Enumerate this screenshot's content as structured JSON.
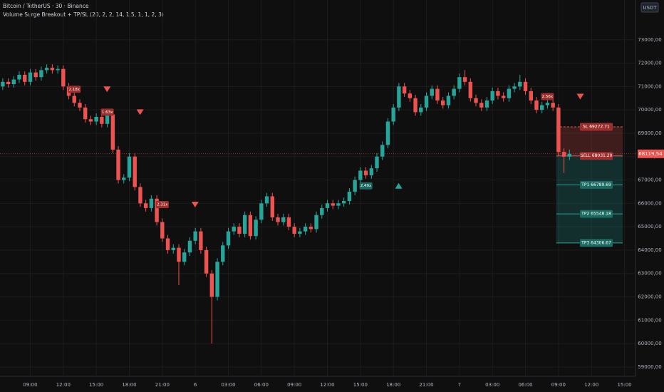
{
  "chart_data": {
    "type": "candlestick",
    "title": "Bitcoin / TetherUS · 30 · Binance",
    "subtitle": "Volume Surge Breakout + TP/SL (20, 2, 2, 14, 1.5, 1, 1, 2, 3)",
    "currency": "USDT",
    "up_color": "#26a69a",
    "down_color": "#ef5350",
    "grid": true,
    "xlim": [
      -0.5,
      115
    ],
    "ylim": [
      58600,
      74700
    ],
    "yticks": [
      {
        "value": 59000,
        "label": "59000,00"
      },
      {
        "value": 60000,
        "label": "60000,00"
      },
      {
        "value": 61000,
        "label": "61000,00"
      },
      {
        "value": 62000,
        "label": "62000,00"
      },
      {
        "value": 63000,
        "label": "63000,00"
      },
      {
        "value": 64000,
        "label": "64000,00"
      },
      {
        "value": 65000,
        "label": "65000,00"
      },
      {
        "value": 66000,
        "label": "66000,00"
      },
      {
        "value": 67000,
        "label": "67000,00"
      },
      {
        "value": 68000,
        "label": "68000,00"
      },
      {
        "value": 69000,
        "label": "69000,00"
      },
      {
        "value": 70000,
        "label": "70000,00"
      },
      {
        "value": 71000,
        "label": "71000,00"
      },
      {
        "value": 72000,
        "label": "72000,00"
      },
      {
        "value": 73000,
        "label": "73000,00"
      }
    ],
    "xticks": [
      {
        "value": 5,
        "label": "09:00"
      },
      {
        "value": 11,
        "label": "12:00"
      },
      {
        "value": 17,
        "label": "15:00"
      },
      {
        "value": 23,
        "label": "18:00"
      },
      {
        "value": 29,
        "label": "21:00"
      },
      {
        "value": 35,
        "label": "6"
      },
      {
        "value": 41,
        "label": "03:00"
      },
      {
        "value": 47,
        "label": "06:00"
      },
      {
        "value": 53,
        "label": "09:00"
      },
      {
        "value": 59,
        "label": "12:00"
      },
      {
        "value": 65,
        "label": "15:00"
      },
      {
        "value": 71,
        "label": "18:00"
      },
      {
        "value": 77,
        "label": "21:00"
      },
      {
        "value": 83,
        "label": "7"
      },
      {
        "value": 89,
        "label": "03:00"
      },
      {
        "value": 95,
        "label": "06:00"
      },
      {
        "value": 101,
        "label": "09:00"
      },
      {
        "value": 107,
        "label": "12:00"
      },
      {
        "value": 113,
        "label": "15:00"
      }
    ],
    "open": [
      71000,
      71200,
      71100,
      71300,
      71500,
      71200,
      71600,
      71400,
      71700,
      71800,
      71700,
      71750,
      71000,
      70600,
      70300,
      70100,
      69600,
      69500,
      69700,
      69400,
      69800,
      68300,
      67000,
      67100,
      68000,
      66700,
      66000,
      65800,
      66200,
      65200,
      64500,
      64000,
      64100,
      63500,
      63900,
      64400,
      64800,
      64000,
      63000,
      62000,
      63500,
      64200,
      64800,
      65000,
      64700,
      65500,
      64600,
      65300,
      66000,
      66300,
      65400,
      65200,
      65400,
      65000,
      64700,
      64800,
      65000,
      64900,
      65500,
      65800,
      66000,
      65900,
      66000,
      66100,
      66500,
      67000,
      67400,
      67200,
      67500,
      68000,
      68500,
      69500,
      70100,
      71000,
      70700,
      70500,
      69900,
      70100,
      70600,
      70900,
      70400,
      70200,
      70600,
      70900,
      71400,
      71200,
      70500,
      70300,
      70100,
      70400,
      70800,
      70600,
      70500,
      70900,
      71000,
      71200,
      70800,
      70400,
      70000,
      70200,
      70300,
      70100,
      68200,
      68000
    ],
    "high": [
      71350,
      71350,
      71450,
      71650,
      71650,
      71750,
      71750,
      71850,
      71950,
      71950,
      71900,
      71900,
      71150,
      70750,
      70450,
      70250,
      69750,
      69850,
      69850,
      69950,
      69950,
      68450,
      67250,
      68150,
      68150,
      66850,
      66150,
      66350,
      66350,
      65350,
      64650,
      64250,
      64250,
      64050,
      64550,
      64950,
      64950,
      64150,
      63150,
      63650,
      64350,
      64950,
      65150,
      65150,
      65650,
      65650,
      65450,
      66150,
      66450,
      66450,
      65550,
      65550,
      65550,
      65150,
      64950,
      65150,
      65150,
      65650,
      65950,
      66150,
      66150,
      66150,
      66250,
      66650,
      67150,
      67550,
      67550,
      67650,
      68150,
      68650,
      69650,
      70250,
      71150,
      71150,
      70850,
      70650,
      70250,
      70750,
      71050,
      71050,
      70550,
      70750,
      71050,
      71550,
      71700,
      71350,
      70650,
      70450,
      70550,
      70950,
      70950,
      70750,
      71050,
      71150,
      71500,
      71350,
      70950,
      70550,
      70350,
      70450,
      70450,
      70250,
      68350,
      68300
    ],
    "low": [
      70850,
      70950,
      70950,
      71150,
      71050,
      71050,
      71250,
      71250,
      71550,
      71550,
      71550,
      70850,
      70450,
      70150,
      69950,
      69450,
      69350,
      69350,
      69250,
      69250,
      68150,
      66850,
      66850,
      66950,
      66550,
      65850,
      65650,
      65650,
      65050,
      64350,
      63850,
      63850,
      62500,
      63350,
      63750,
      64250,
      63850,
      62850,
      60000,
      61850,
      63350,
      64050,
      64650,
      64550,
      64550,
      64450,
      64450,
      65150,
      65850,
      65250,
      65050,
      65050,
      64850,
      64550,
      64550,
      64650,
      64750,
      64750,
      65350,
      65650,
      65750,
      65750,
      65850,
      65950,
      66350,
      66850,
      67050,
      67050,
      67350,
      67850,
      68350,
      69350,
      69950,
      70550,
      70350,
      69750,
      69750,
      69950,
      70450,
      70250,
      70050,
      70050,
      70450,
      70750,
      71050,
      70350,
      70150,
      69950,
      69950,
      70250,
      70450,
      70350,
      70350,
      70750,
      70850,
      70650,
      70250,
      69850,
      69850,
      70050,
      69950,
      68050,
      67300,
      67850
    ],
    "close": [
      71200,
      71100,
      71300,
      71500,
      71200,
      71600,
      71400,
      71700,
      71800,
      71700,
      71750,
      71000,
      70600,
      70300,
      70100,
      69600,
      69500,
      69700,
      69400,
      69800,
      68300,
      67000,
      67100,
      68000,
      66700,
      66000,
      65800,
      66200,
      65200,
      64500,
      64000,
      64100,
      63500,
      63900,
      64400,
      64800,
      64000,
      63000,
      62000,
      63500,
      64200,
      64800,
      65000,
      64700,
      65500,
      64600,
      65300,
      66000,
      66300,
      65400,
      65200,
      65400,
      65000,
      64700,
      64800,
      65000,
      64900,
      65500,
      65800,
      66000,
      65900,
      66000,
      66100,
      66500,
      67000,
      67400,
      67200,
      67500,
      68000,
      68500,
      69500,
      70100,
      71000,
      70700,
      70500,
      69900,
      70100,
      70600,
      70900,
      70400,
      70200,
      70600,
      70900,
      71400,
      71200,
      70500,
      70300,
      70100,
      70400,
      70800,
      70600,
      70500,
      70900,
      71000,
      71200,
      70800,
      70400,
      70000,
      70200,
      70300,
      70100,
      68200,
      68000,
      68119.54
    ],
    "surges": [
      {
        "label": "2.18x",
        "at": 13,
        "value": 70880,
        "direction": "down"
      },
      {
        "label": "1.63x",
        "at": 19,
        "value": 69900,
        "direction": "down"
      },
      {
        "label": "2.31x",
        "at": 29,
        "value": 65950,
        "direction": "down"
      },
      {
        "label": "2.49x",
        "at": 66,
        "value": 66750,
        "direction": "up"
      },
      {
        "label": "2.56x",
        "at": 99,
        "value": 70570,
        "direction": "down"
      }
    ],
    "trade_start": 101,
    "levels": [
      {
        "label": "SL 69272.71",
        "value": 69272.71,
        "kind": "sl"
      },
      {
        "label": "SELL 68031.20",
        "value": 68031.2,
        "kind": "entry"
      },
      {
        "label": "TP1 66789.69",
        "value": 66789.69,
        "kind": "tp"
      },
      {
        "label": "TP2 65548.18",
        "value": 65548.18,
        "kind": "tp"
      },
      {
        "label": "TP3 64306.67",
        "value": 64306.67,
        "kind": "tp"
      }
    ],
    "last_price": {
      "value": 68119.54,
      "label": "68119,54"
    }
  }
}
